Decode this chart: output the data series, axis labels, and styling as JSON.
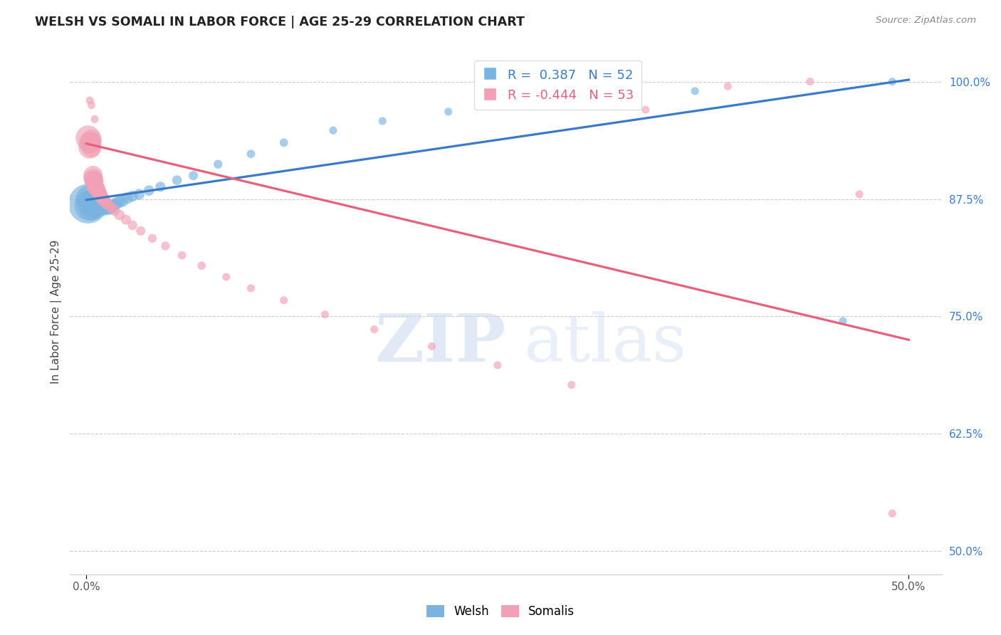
{
  "title": "WELSH VS SOMALI IN LABOR FORCE | AGE 25-29 CORRELATION CHART",
  "source": "Source: ZipAtlas.com",
  "ylabel": "In Labor Force | Age 25-29",
  "ytick_values": [
    0.5,
    0.625,
    0.75,
    0.875,
    1.0
  ],
  "xtick_values": [
    0.0,
    0.5
  ],
  "xtick_labels": [
    "0.0%",
    "50.0%"
  ],
  "xlim": [
    -0.01,
    0.52
  ],
  "ylim": [
    0.475,
    1.035
  ],
  "welsh_R": 0.387,
  "welsh_N": 52,
  "somali_R": -0.444,
  "somali_N": 53,
  "welsh_color": "#7ab3e0",
  "somali_color": "#f2a0b5",
  "welsh_line_color": "#3a7bc8",
  "somali_line_color": "#e8607a",
  "legend_welsh": "Welsh",
  "legend_somali": "Somalis",
  "watermark_zip": "ZIP",
  "watermark_atlas": "atlas",
  "welsh_x": [
    0.001,
    0.002,
    0.002,
    0.003,
    0.003,
    0.003,
    0.004,
    0.004,
    0.004,
    0.005,
    0.005,
    0.005,
    0.005,
    0.006,
    0.006,
    0.006,
    0.007,
    0.007,
    0.007,
    0.008,
    0.008,
    0.009,
    0.009,
    0.01,
    0.01,
    0.011,
    0.011,
    0.012,
    0.013,
    0.014,
    0.015,
    0.016,
    0.018,
    0.02,
    0.022,
    0.025,
    0.028,
    0.032,
    0.038,
    0.045,
    0.055,
    0.065,
    0.08,
    0.1,
    0.12,
    0.15,
    0.18,
    0.22,
    0.28,
    0.37,
    0.46,
    0.49
  ],
  "welsh_y": [
    0.87,
    0.868,
    0.875,
    0.87,
    0.865,
    0.872,
    0.87,
    0.868,
    0.866,
    0.87,
    0.868,
    0.866,
    0.864,
    0.87,
    0.868,
    0.866,
    0.87,
    0.868,
    0.866,
    0.869,
    0.867,
    0.868,
    0.866,
    0.867,
    0.865,
    0.868,
    0.866,
    0.867,
    0.865,
    0.868,
    0.866,
    0.868,
    0.87,
    0.872,
    0.873,
    0.876,
    0.878,
    0.88,
    0.884,
    0.888,
    0.895,
    0.9,
    0.912,
    0.923,
    0.935,
    0.948,
    0.958,
    0.968,
    0.978,
    0.99,
    0.745,
    1.0
  ],
  "welsh_size": [
    200,
    120,
    100,
    80,
    75,
    70,
    65,
    60,
    55,
    55,
    50,
    48,
    45,
    45,
    42,
    40,
    40,
    38,
    36,
    35,
    33,
    32,
    30,
    30,
    28,
    27,
    26,
    25,
    24,
    23,
    22,
    21,
    20,
    19,
    18,
    17,
    16,
    15,
    14,
    13,
    12,
    11,
    10,
    9,
    9,
    8,
    8,
    8,
    8,
    8,
    8,
    8
  ],
  "somali_x": [
    0.001,
    0.002,
    0.002,
    0.003,
    0.003,
    0.003,
    0.004,
    0.004,
    0.004,
    0.005,
    0.005,
    0.005,
    0.005,
    0.006,
    0.006,
    0.007,
    0.007,
    0.007,
    0.008,
    0.008,
    0.009,
    0.009,
    0.01,
    0.01,
    0.011,
    0.012,
    0.013,
    0.015,
    0.017,
    0.02,
    0.024,
    0.028,
    0.033,
    0.04,
    0.048,
    0.058,
    0.07,
    0.085,
    0.1,
    0.12,
    0.145,
    0.175,
    0.21,
    0.25,
    0.295,
    0.34,
    0.39,
    0.44,
    0.49,
    0.005,
    0.003,
    0.002,
    0.47
  ],
  "somali_y": [
    0.94,
    0.93,
    0.935,
    0.938,
    0.935,
    0.93,
    0.9,
    0.897,
    0.895,
    0.895,
    0.893,
    0.89,
    0.888,
    0.888,
    0.886,
    0.886,
    0.884,
    0.882,
    0.882,
    0.88,
    0.879,
    0.877,
    0.876,
    0.874,
    0.873,
    0.871,
    0.869,
    0.866,
    0.863,
    0.858,
    0.853,
    0.847,
    0.841,
    0.833,
    0.825,
    0.815,
    0.804,
    0.792,
    0.78,
    0.767,
    0.752,
    0.736,
    0.718,
    0.698,
    0.677,
    0.97,
    0.995,
    1.0,
    0.54,
    0.96,
    0.975,
    0.98,
    0.88
  ],
  "somali_size": [
    80,
    65,
    60,
    55,
    52,
    50,
    48,
    45,
    42,
    40,
    38,
    36,
    34,
    32,
    30,
    29,
    27,
    26,
    25,
    24,
    23,
    22,
    21,
    20,
    19,
    18,
    17,
    16,
    15,
    14,
    13,
    12,
    11,
    10,
    10,
    9,
    9,
    8,
    8,
    8,
    8,
    8,
    8,
    8,
    8,
    8,
    8,
    8,
    8,
    8,
    8,
    8,
    8
  ]
}
